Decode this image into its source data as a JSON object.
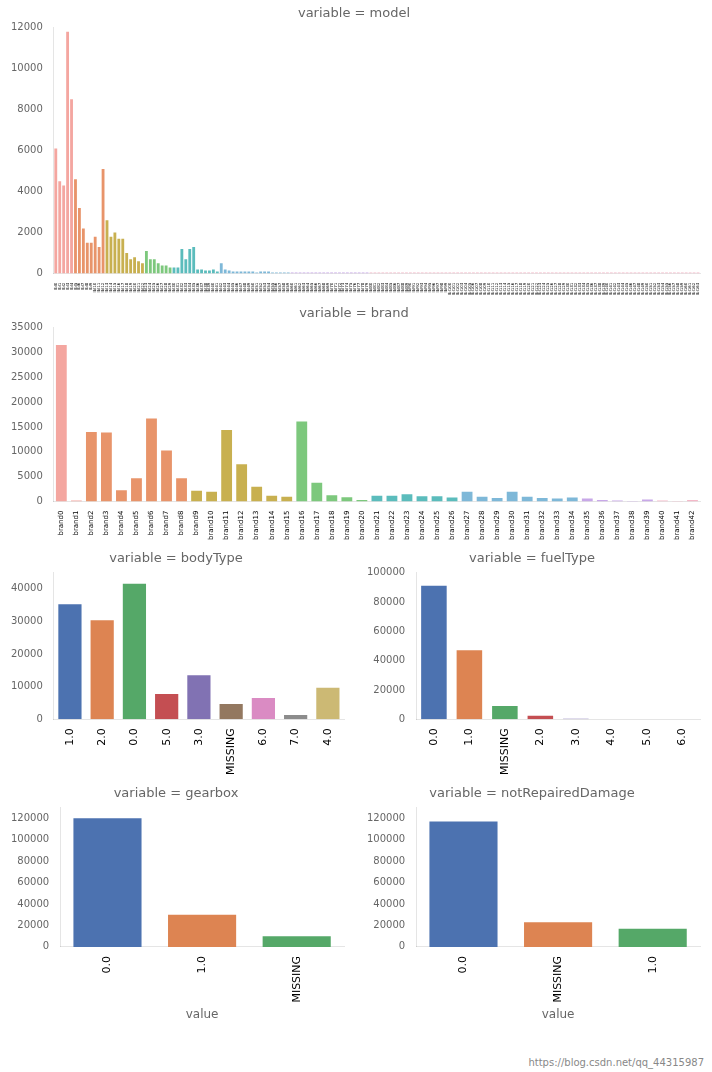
{
  "chart_data": [
    {
      "type": "bar",
      "title": "variable = model",
      "categories": [
        "lbl0",
        "lbl1",
        "lbl2",
        "lbl3",
        "lbl4",
        "lbl5",
        "lbl6",
        "lbl7",
        "lbl8",
        "lbl9",
        "lbl10",
        "lbl11",
        "lbl12",
        "lbl13",
        "lbl14",
        "lbl15",
        "lbl16",
        "lbl17",
        "lbl18",
        "lbl19",
        "lbl20",
        "lbl21",
        "lbl22",
        "lbl23",
        "lbl24",
        "lbl25",
        "lbl26",
        "lbl27",
        "lbl28",
        "lbl29",
        "lbl30",
        "lbl31",
        "lbl32",
        "lbl33",
        "lbl34",
        "lbl35",
        "lbl36",
        "lbl37",
        "lbl38",
        "lbl39",
        "lbl40",
        "lbl41",
        "lbl42",
        "lbl43",
        "lbl44",
        "lbl45",
        "lbl46",
        "lbl47",
        "lbl48",
        "lbl49",
        "lbl50",
        "lbl51",
        "lbl52",
        "lbl53",
        "lbl54",
        "lbl55",
        "lbl56",
        "lbl57",
        "lbl58",
        "lbl59",
        "lbl60",
        "lbl61",
        "lbl62",
        "lbl63",
        "lbl64",
        "lbl65",
        "lbl66",
        "lbl67",
        "lbl68",
        "lbl69",
        "lbl70",
        "lbl71",
        "lbl72",
        "lbl73",
        "lbl74",
        "lbl75",
        "lbl76",
        "lbl77",
        "lbl78",
        "lbl79",
        "lbl80",
        "lbl81",
        "lbl82",
        "lbl83",
        "lbl84",
        "lbl85",
        "lbl86",
        "lbl87",
        "lbl88",
        "lbl89",
        "lbl90",
        "lbl91",
        "lbl92",
        "lbl93",
        "lbl94",
        "lbl95",
        "lbl96",
        "lbl97",
        "lbl98",
        "lbl99",
        "lbl100",
        "lbl101",
        "lbl102",
        "lbl103",
        "lbl104",
        "lbl105",
        "lbl106",
        "lbl107",
        "lbl108",
        "lbl109",
        "lbl110",
        "lbl111",
        "lbl112",
        "lbl113",
        "lbl114",
        "lbl115",
        "lbl116",
        "lbl117",
        "lbl118",
        "lbl119",
        "lbl120",
        "lbl121",
        "lbl122",
        "lbl123",
        "lbl124",
        "lbl125",
        "lbl126",
        "lbl127",
        "lbl128",
        "lbl129",
        "lbl130",
        "lbl131",
        "lbl132",
        "lbl133",
        "lbl134",
        "lbl135",
        "lbl136",
        "lbl137",
        "lbl138",
        "lbl139",
        "lbl140",
        "lbl141",
        "lbl142",
        "lbl143",
        "lbl144",
        "lbl145",
        "lbl146",
        "lbl147",
        "lbl148",
        "lbl149",
        "lbl150",
        "lbl151",
        "lbl152",
        "lbl153",
        "lbl154",
        "lbl155",
        "lbl156",
        "lbl157",
        "lbl158",
        "lbl159",
        "lbl160",
        "lbl161",
        "lbl162",
        "lbl163"
      ],
      "values": [
        6100,
        4500,
        4300,
        11800,
        8500,
        4600,
        3200,
        2200,
        1500,
        1500,
        1800,
        1300,
        5100,
        2600,
        1800,
        2000,
        1700,
        1700,
        1000,
        700,
        800,
        600,
        500,
        1100,
        700,
        700,
        500,
        400,
        400,
        300,
        300,
        300,
        1200,
        700,
        1200,
        1300,
        200,
        200,
        150,
        150,
        200,
        100,
        500,
        200,
        150,
        100,
        100,
        100,
        100,
        100,
        100,
        50,
        100,
        100,
        100,
        50,
        50,
        50,
        50,
        50,
        50,
        50,
        50,
        50,
        50,
        50,
        50,
        50,
        50,
        50,
        50,
        50,
        50,
        50,
        50,
        50,
        50,
        50,
        50,
        50,
        50,
        50,
        50,
        50,
        50,
        50,
        50,
        50,
        50,
        50,
        50,
        50,
        50,
        50,
        50,
        50,
        50,
        50,
        50,
        50,
        50,
        50,
        50,
        50,
        50,
        50,
        50,
        50,
        50,
        50,
        50,
        50,
        50,
        50,
        50,
        50,
        50,
        50,
        50,
        50,
        50,
        50,
        50,
        50,
        50,
        50,
        50,
        50,
        50,
        50,
        50,
        50,
        50,
        50,
        50,
        50,
        50,
        50,
        50,
        50,
        50,
        50,
        50,
        50,
        50,
        50,
        50,
        50,
        50,
        50,
        50,
        50,
        50,
        50,
        50,
        50,
        50,
        50,
        50,
        50,
        50,
        50,
        50,
        50
      ],
      "colors": [
        "#F4A6A0",
        "#F4A6A0",
        "#F4A6A0",
        "#F4A6A0",
        "#F4A6A0",
        "#E8946A",
        "#E8946A",
        "#E8946A",
        "#E8946A",
        "#E8946A",
        "#E8946A",
        "#E8946A",
        "#E8946A",
        "#C8B050",
        "#C8B050",
        "#C8B050",
        "#C8B050",
        "#C8B050",
        "#C8B050",
        "#C8B050",
        "#C8B050",
        "#C8B050",
        "#C8B050",
        "#7DC87D",
        "#7DC87D",
        "#7DC87D",
        "#7DC87D",
        "#7DC87D",
        "#7DC87D",
        "#7DC87D",
        "#5BBCBC",
        "#5BBCBC",
        "#5BBCBC",
        "#5BBCBC",
        "#5BBCBC",
        "#5BBCBC",
        "#5BBCBC",
        "#5BBCBC",
        "#5BBCBC",
        "#5BBCBC",
        "#5BBCBC",
        "#5BBCBC",
        "#7EB8D8",
        "#7EB8D8",
        "#7EB8D8",
        "#7EB8D8",
        "#7EB8D8",
        "#7EB8D8",
        "#7EB8D8",
        "#7EB8D8",
        "#7EB8D8",
        "#7EB8D8",
        "#7EB8D8",
        "#7EB8D8",
        "#7EB8D8",
        "#7EB8D8",
        "#7EB8D8",
        "#7EB8D8",
        "#7EB8D8",
        "#7EB8D8",
        "#C8A8E8",
        "#C8A8E8",
        "#C8A8E8",
        "#C8A8E8",
        "#C8A8E8",
        "#C8A8E8",
        "#C8A8E8",
        "#C8A8E8",
        "#C8A8E8",
        "#C8A8E8",
        "#C8A8E8",
        "#C8A8E8",
        "#C8A8E8",
        "#C8A8E8",
        "#C8A8E8",
        "#C8A8E8",
        "#C8A8E8",
        "#C8A8E8",
        "#C8A8E8",
        "#C8A8E8",
        "#F4B8C8",
        "#F4B8C8",
        "#F4B8C8",
        "#F4B8C8",
        "#F4B8C8",
        "#F4B8C8",
        "#F4B8C8",
        "#F4B8C8",
        "#F4B8C8",
        "#F4B8C8",
        "#F4B8C8",
        "#F4B8C8",
        "#F4B8C8",
        "#F4B8C8",
        "#F4B8C8",
        "#F4B8C8",
        "#F4B8C8",
        "#F4B8C8",
        "#F4B8C8",
        "#F4B8C8",
        "#F4B8C8",
        "#F4B8C8",
        "#F4B8C8",
        "#F4B8C8",
        "#F4B8C8",
        "#F4B8C8",
        "#F4B8C8",
        "#F4B8C8",
        "#F4B8C8",
        "#F4B8C8",
        "#F4B8C8",
        "#F4B8C8",
        "#F4B8C8",
        "#F4B8C8",
        "#F4B8C8",
        "#F4B8C8",
        "#F4B8C8",
        "#F4B8C8",
        "#F4B8C8",
        "#F4B8C8",
        "#F4B8C8",
        "#F4B8C8",
        "#F4B8C8",
        "#F4B8C8",
        "#F4B8C8",
        "#F4B8C8",
        "#F4B8C8",
        "#F4B8C8",
        "#F4B8C8",
        "#F4B8C8",
        "#F4B8C8",
        "#F4B8C8",
        "#F4B8C8",
        "#F4B8C8",
        "#F4B8C8",
        "#F4B8C8",
        "#F4B8C8",
        "#F4B8C8",
        "#F4B8C8",
        "#F4B8C8",
        "#F4B8C8",
        "#F4B8C8",
        "#F4B8C8",
        "#F4B8C8",
        "#F4B8C8",
        "#F4B8C8",
        "#F4B8C8",
        "#F4B8C8",
        "#F4B8C8",
        "#F4B8C8",
        "#F4B8C8",
        "#F4B8C8",
        "#F4B8C8",
        "#F4B8C8",
        "#F4B8C8",
        "#F4B8C8",
        "#F4B8C8",
        "#F4B8C8",
        "#F4B8C8",
        "#F4B8C8",
        "#F4B8C8",
        "#F4B8C8",
        "#F4B8C8",
        "#F4B8C8"
      ],
      "ylim": [
        0,
        12000
      ],
      "yticks": [
        0,
        2000,
        4000,
        6000,
        8000,
        10000,
        12000
      ],
      "grid": false
    },
    {
      "type": "bar",
      "title": "variable = brand",
      "categories": [
        "brand0",
        "brand1",
        "brand2",
        "brand3",
        "brand4",
        "brand5",
        "brand6",
        "brand7",
        "brand8",
        "brand9",
        "brand10",
        "brand11",
        "brand12",
        "brand13",
        "brand14",
        "brand15",
        "brand16",
        "brand17",
        "brand18",
        "brand19",
        "brand20",
        "brand21",
        "brand22",
        "brand23",
        "brand24",
        "brand25",
        "brand26",
        "brand27",
        "brand28",
        "brand29",
        "brand30",
        "brand31",
        "brand32",
        "brand33",
        "brand34",
        "brand35",
        "brand36",
        "brand37",
        "brand38",
        "brand39",
        "brand40",
        "brand41",
        "brand42"
      ],
      "values": [
        31500,
        200,
        14000,
        13900,
        2300,
        4700,
        16700,
        10300,
        4700,
        2200,
        2000,
        14400,
        7500,
        3000,
        1200,
        1000,
        16100,
        3800,
        1300,
        900,
        300,
        1200,
        1200,
        1500,
        1100,
        1100,
        800,
        2000,
        1000,
        700,
        2000,
        1000,
        700,
        600,
        800,
        600,
        300,
        200,
        100,
        400,
        200,
        100,
        300
      ],
      "colors": [
        "#F4A6A0",
        "#F4A6A0",
        "#E8946A",
        "#E8946A",
        "#E8946A",
        "#E8946A",
        "#E8946A",
        "#E8946A",
        "#E8946A",
        "#C8B050",
        "#C8B050",
        "#C8B050",
        "#C8B050",
        "#C8B050",
        "#C8B050",
        "#C8B050",
        "#7DC87D",
        "#7DC87D",
        "#7DC87D",
        "#7DC87D",
        "#7DC87D",
        "#5BBCBC",
        "#5BBCBC",
        "#5BBCBC",
        "#5BBCBC",
        "#5BBCBC",
        "#5BBCBC",
        "#7EB8D8",
        "#7EB8D8",
        "#7EB8D8",
        "#7EB8D8",
        "#7EB8D8",
        "#7EB8D8",
        "#7EB8D8",
        "#7EB8D8",
        "#C8A8E8",
        "#C8A8E8",
        "#C8A8E8",
        "#C8A8E8",
        "#C8A8E8",
        "#F4B8C8",
        "#F4B8C8",
        "#F4B8C8"
      ],
      "ylim": [
        0,
        35000
      ],
      "yticks": [
        0,
        5000,
        10000,
        15000,
        20000,
        25000,
        30000,
        35000
      ],
      "grid": false
    },
    {
      "type": "bar",
      "title": "variable = bodyType",
      "categories": [
        "1.0",
        "2.0",
        "0.0",
        "5.0",
        "3.0",
        "MISSING",
        "6.0",
        "7.0",
        "4.0"
      ],
      "values": [
        35300,
        30400,
        41600,
        7800,
        13500,
        4700,
        6500,
        1300,
        9700
      ],
      "colors": [
        "#4C72B0",
        "#DD8452",
        "#55A868",
        "#C44E52",
        "#8172B3",
        "#937860",
        "#DA8BC3",
        "#8C8C8C",
        "#CCB974"
      ],
      "ylim": [
        0,
        45000
      ],
      "yticks": [
        0,
        10000,
        20000,
        30000,
        40000
      ],
      "grid": false
    },
    {
      "type": "bar",
      "title": "variable = fuelType",
      "categories": [
        "0.0",
        "1.0",
        "MISSING",
        "2.0",
        "3.0",
        "4.0",
        "5.0",
        "6.0"
      ],
      "values": [
        91000,
        47000,
        9000,
        2500,
        400,
        100,
        50,
        20
      ],
      "colors": [
        "#4C72B0",
        "#DD8452",
        "#55A868",
        "#C44E52",
        "#8172B3",
        "#937860",
        "#DA8BC3",
        "#8C8C8C"
      ],
      "ylim": [
        0,
        100000
      ],
      "yticks": [
        0,
        20000,
        40000,
        60000,
        80000,
        100000
      ],
      "grid": false
    },
    {
      "type": "bar",
      "title": "variable = gearbox",
      "xlabel": "value",
      "categories": [
        "0.0",
        "1.0",
        "MISSING"
      ],
      "values": [
        120000,
        30000,
        10000
      ],
      "colors": [
        "#4C72B0",
        "#DD8452",
        "#55A868"
      ],
      "ylim": [
        0,
        130000
      ],
      "yticks": [
        0,
        20000,
        40000,
        60000,
        80000,
        100000,
        120000
      ],
      "grid": false
    },
    {
      "type": "bar",
      "title": "variable = notRepairedDamage",
      "xlabel": "value",
      "categories": [
        "0.0",
        "MISSING",
        "1.0"
      ],
      "values": [
        117000,
        23000,
        17000
      ],
      "colors": [
        "#4C72B0",
        "#DD8452",
        "#55A868"
      ],
      "ylim": [
        0,
        130000
      ],
      "yticks": [
        0,
        20000,
        40000,
        60000,
        80000,
        100000,
        120000
      ],
      "grid": false
    }
  ],
  "annotations": [
    "https://blog.csdn.net/qq_44315987"
  ]
}
